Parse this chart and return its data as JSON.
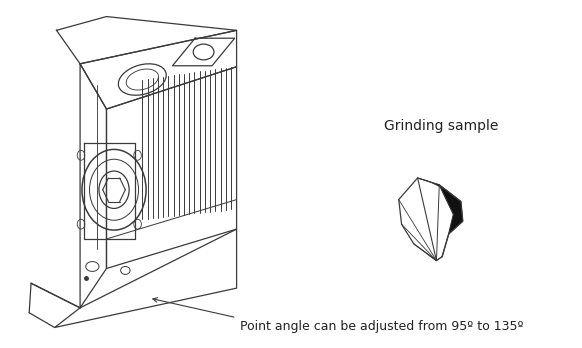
{
  "background_color": "#ffffff",
  "fig_width": 5.82,
  "fig_height": 3.48,
  "dpi": 100,
  "annotation_text": "Point angle can be adjusted from 95º to 135º",
  "annotation_fontsize": 9.0,
  "grinding_sample_label": "Grinding sample",
  "grinding_sample_label_fontsize": 10,
  "line_color": "#3a3a3a"
}
